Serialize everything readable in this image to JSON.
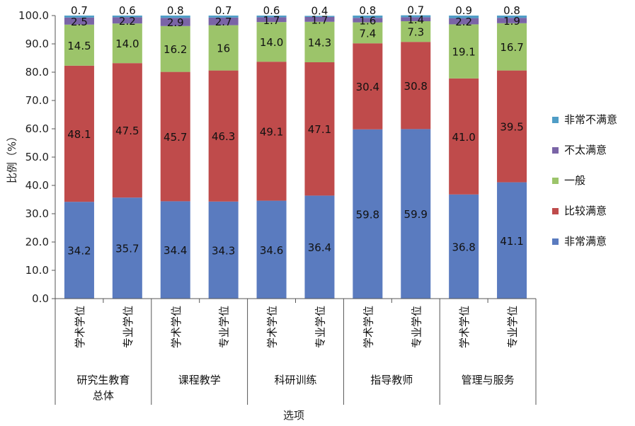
{
  "chart_data": {
    "type": "bar",
    "stacked": true,
    "ylabel": "比例（%）",
    "xlabel": "选项",
    "ylim": [
      0,
      100
    ],
    "yticks": [
      "0.0",
      "10.0",
      "20.0",
      "30.0",
      "40.0",
      "50.0",
      "60.0",
      "70.0",
      "80.0",
      "90.0",
      "100.0"
    ],
    "groups": [
      {
        "name": "研究生教育总体",
        "lines": [
          "研究生教育",
          "总体"
        ]
      },
      {
        "name": "课程教学",
        "lines": [
          "课程教学"
        ]
      },
      {
        "name": "科研训练",
        "lines": [
          "科研训练"
        ]
      },
      {
        "name": "指导教师",
        "lines": [
          "指导教师"
        ]
      },
      {
        "name": "管理与服务",
        "lines": [
          "管理与服务"
        ]
      }
    ],
    "categories": [
      "学术学位",
      "专业学位",
      "学术学位",
      "专业学位",
      "学术学位",
      "专业学位",
      "学术学位",
      "专业学位",
      "学术学位",
      "专业学位"
    ],
    "series": [
      {
        "name": "非常满意",
        "color": "#5a7bbf",
        "values": [
          34.2,
          35.7,
          34.4,
          34.3,
          34.6,
          36.4,
          59.8,
          59.9,
          36.8,
          41.1
        ],
        "labels": [
          "34.2",
          "35.7",
          "34.4",
          "34.3",
          "34.6",
          "36.4",
          "59.8",
          "59.9",
          "36.8",
          "41.1"
        ]
      },
      {
        "name": "比较满意",
        "color": "#bf4b4b",
        "values": [
          48.1,
          47.5,
          45.7,
          46.3,
          49.1,
          47.1,
          30.4,
          30.8,
          41.0,
          39.5
        ],
        "labels": [
          "48.1",
          "47.5",
          "45.7",
          "46.3",
          "49.1",
          "47.1",
          "30.4",
          "30.8",
          "41.0",
          "39.5"
        ]
      },
      {
        "name": "一般",
        "color": "#9cc46a",
        "values": [
          14.5,
          14.0,
          16.2,
          16,
          14.0,
          14.3,
          7.4,
          7.3,
          19.1,
          16.7
        ],
        "labels": [
          "14.5",
          "14.0",
          "16.2",
          "16",
          "14.0",
          "14.3",
          "7.4",
          "7.3",
          "19.1",
          "16.7"
        ]
      },
      {
        "name": "不太满意",
        "color": "#7a64a6",
        "values": [
          2.5,
          2.2,
          2.9,
          2.7,
          1.7,
          1.7,
          1.6,
          1.4,
          2.2,
          1.9
        ],
        "labels": [
          "2.5",
          "2.2",
          "2.9",
          "2.7",
          "1.7",
          "1.7",
          "1.6",
          "1.4",
          "2.2",
          "1.9"
        ]
      },
      {
        "name": "非常不满意",
        "color": "#4f9dc6",
        "values": [
          0.7,
          0.6,
          0.8,
          0.7,
          0.6,
          0.4,
          0.8,
          0.7,
          0.9,
          0.8
        ],
        "labels": [
          "0.7",
          "0.6",
          "0.8",
          "0.7",
          "0.6",
          "0.4",
          "0.8",
          "0.7",
          "0.9",
          "0.8"
        ]
      }
    ],
    "legend": {
      "placement": "right",
      "order": [
        "非常不满意",
        "不太满意",
        "一般",
        "比较满意",
        "非常满意"
      ]
    },
    "grid": false
  }
}
